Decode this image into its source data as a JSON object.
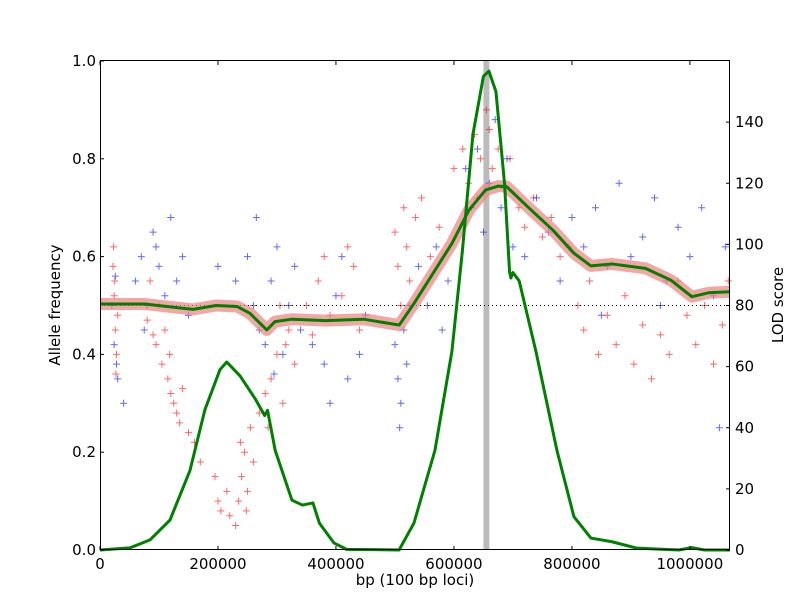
{
  "chart_data": {
    "type": "scatter",
    "title": "",
    "xlabel": "bp (100 bp loci)",
    "ylabel": "Allele frequency",
    "y2label": "LOD score",
    "xlim": [
      0,
      1068000
    ],
    "ylim": [
      0,
      1.0
    ],
    "y2lim": [
      0,
      160
    ],
    "grid": false,
    "x_ticks": [
      0,
      200000,
      400000,
      600000,
      800000,
      1000000
    ],
    "x_tick_labels": [
      "0",
      "200000",
      "400000",
      "600000",
      "800000",
      "1000000"
    ],
    "y_ticks": [
      0,
      0.2,
      0.4,
      0.6,
      0.8,
      1.0
    ],
    "y_tick_labels": [
      "0.0",
      "0.2",
      "0.4",
      "0.6",
      "0.8",
      "1.0"
    ],
    "y2_ticks": [
      0,
      20,
      40,
      60,
      80,
      100,
      120,
      140
    ],
    "y2_tick_labels": [
      "0",
      "20",
      "40",
      "60",
      "80",
      "100",
      "120",
      "140"
    ],
    "reference_line": {
      "y": 0.5,
      "style": "dotted",
      "color": "#000000"
    },
    "highlight_band": {
      "x": [
        650000,
        660000
      ],
      "color": "#bbbbbb"
    },
    "colors": {
      "red": "#ff0000",
      "blue": "#0000ff",
      "lod": "#008000",
      "band": "#f08080"
    },
    "series": [
      {
        "marker": "+",
        "color": "#ff0000",
        "points": [
          [
            22000,
            0.58
          ],
          [
            24000,
            0.52
          ],
          [
            26000,
            0.45
          ],
          [
            28000,
            0.4
          ],
          [
            25000,
            0.55
          ],
          [
            30000,
            0.48
          ],
          [
            27000,
            0.36
          ],
          [
            23000,
            0.62
          ],
          [
            80000,
            0.47
          ],
          [
            90000,
            0.44
          ],
          [
            95000,
            0.42
          ],
          [
            100000,
            0.5
          ],
          [
            105000,
            0.38
          ],
          [
            110000,
            0.45
          ],
          [
            115000,
            0.35
          ],
          [
            120000,
            0.32
          ],
          [
            125000,
            0.3
          ],
          [
            130000,
            0.28
          ],
          [
            135000,
            0.26
          ],
          [
            140000,
            0.33
          ],
          [
            150000,
            0.24
          ],
          [
            160000,
            0.22
          ],
          [
            170000,
            0.18
          ],
          [
            85000,
            0.55
          ],
          [
            118000,
            0.4
          ],
          [
            195000,
            0.15
          ],
          [
            200000,
            0.1
          ],
          [
            205000,
            0.08
          ],
          [
            215000,
            0.12
          ],
          [
            220000,
            0.07
          ],
          [
            230000,
            0.05
          ],
          [
            235000,
            0.1
          ],
          [
            240000,
            0.15
          ],
          [
            245000,
            0.2
          ],
          [
            250000,
            0.12
          ],
          [
            255000,
            0.25
          ],
          [
            260000,
            0.18
          ],
          [
            248000,
            0.08
          ],
          [
            238000,
            0.22
          ],
          [
            270000,
            0.28
          ],
          [
            280000,
            0.32
          ],
          [
            290000,
            0.35
          ],
          [
            300000,
            0.4
          ],
          [
            310000,
            0.3
          ],
          [
            320000,
            0.45
          ],
          [
            330000,
            0.38
          ],
          [
            285000,
            0.25
          ],
          [
            305000,
            0.5
          ],
          [
            315000,
            0.42
          ],
          [
            350000,
            0.5
          ],
          [
            370000,
            0.55
          ],
          [
            390000,
            0.48
          ],
          [
            410000,
            0.52
          ],
          [
            430000,
            0.58
          ],
          [
            440000,
            0.45
          ],
          [
            380000,
            0.6
          ],
          [
            420000,
            0.62
          ],
          [
            360000,
            0.44
          ],
          [
            500000,
            0.65
          ],
          [
            505000,
            0.58
          ],
          [
            510000,
            0.5
          ],
          [
            515000,
            0.7
          ],
          [
            520000,
            0.62
          ],
          [
            525000,
            0.55
          ],
          [
            535000,
            0.68
          ],
          [
            545000,
            0.72
          ],
          [
            560000,
            0.6
          ],
          [
            575000,
            0.66
          ],
          [
            600000,
            0.78
          ],
          [
            615000,
            0.82
          ],
          [
            625000,
            0.75
          ],
          [
            635000,
            0.85
          ],
          [
            645000,
            0.8
          ],
          [
            655000,
            0.9
          ],
          [
            660000,
            0.86
          ],
          [
            665000,
            0.78
          ],
          [
            675000,
            0.82
          ],
          [
            685000,
            0.74
          ],
          [
            695000,
            0.8
          ],
          [
            640000,
            0.72
          ],
          [
            710000,
            0.7
          ],
          [
            720000,
            0.66
          ],
          [
            735000,
            0.72
          ],
          [
            750000,
            0.64
          ],
          [
            765000,
            0.68
          ],
          [
            780000,
            0.6
          ],
          [
            795000,
            0.62
          ],
          [
            810000,
            0.5
          ],
          [
            820000,
            0.45
          ],
          [
            830000,
            0.55
          ],
          [
            845000,
            0.4
          ],
          [
            860000,
            0.48
          ],
          [
            875000,
            0.42
          ],
          [
            890000,
            0.52
          ],
          [
            905000,
            0.38
          ],
          [
            920000,
            0.46
          ],
          [
            935000,
            0.35
          ],
          [
            950000,
            0.44
          ],
          [
            965000,
            0.4
          ],
          [
            980000,
            0.55
          ],
          [
            995000,
            0.48
          ],
          [
            1010000,
            0.42
          ],
          [
            1025000,
            0.5
          ],
          [
            1040000,
            0.38
          ],
          [
            1055000,
            0.46
          ],
          [
            1065000,
            0.55
          ]
        ]
      },
      {
        "marker": "+",
        "color": "#0000ff",
        "points": [
          [
            20000,
            0.5
          ],
          [
            24000,
            0.42
          ],
          [
            28000,
            0.38
          ],
          [
            26000,
            0.56
          ],
          [
            30000,
            0.35
          ],
          [
            40000,
            0.3
          ],
          [
            60000,
            0.55
          ],
          [
            70000,
            0.6
          ],
          [
            80000,
            0.5
          ],
          [
            90000,
            0.65
          ],
          [
            100000,
            0.58
          ],
          [
            110000,
            0.52
          ],
          [
            120000,
            0.68
          ],
          [
            130000,
            0.55
          ],
          [
            140000,
            0.6
          ],
          [
            150000,
            0.48
          ],
          [
            75000,
            0.45
          ],
          [
            95000,
            0.62
          ],
          [
            200000,
            0.58
          ],
          [
            230000,
            0.55
          ],
          [
            250000,
            0.6
          ],
          [
            260000,
            0.5
          ],
          [
            270000,
            0.45
          ],
          [
            280000,
            0.42
          ],
          [
            290000,
            0.55
          ],
          [
            300000,
            0.62
          ],
          [
            310000,
            0.4
          ],
          [
            320000,
            0.5
          ],
          [
            330000,
            0.58
          ],
          [
            340000,
            0.45
          ],
          [
            265000,
            0.68
          ],
          [
            295000,
            0.36
          ],
          [
            360000,
            0.42
          ],
          [
            380000,
            0.38
          ],
          [
            400000,
            0.52
          ],
          [
            420000,
            0.35
          ],
          [
            440000,
            0.4
          ],
          [
            450000,
            0.48
          ],
          [
            390000,
            0.3
          ],
          [
            410000,
            0.6
          ],
          [
            500000,
            0.42
          ],
          [
            505000,
            0.35
          ],
          [
            510000,
            0.3
          ],
          [
            515000,
            0.45
          ],
          [
            520000,
            0.38
          ],
          [
            508000,
            0.25
          ],
          [
            525000,
            0.5
          ],
          [
            540000,
            0.58
          ],
          [
            555000,
            0.5
          ],
          [
            570000,
            0.62
          ],
          [
            590000,
            0.55
          ],
          [
            580000,
            0.45
          ],
          [
            620000,
            0.78
          ],
          [
            630000,
            0.7
          ],
          [
            640000,
            0.82
          ],
          [
            650000,
            0.65
          ],
          [
            660000,
            0.75
          ],
          [
            670000,
            0.88
          ],
          [
            680000,
            0.7
          ],
          [
            690000,
            0.8
          ],
          [
            700000,
            0.62
          ],
          [
            720000,
            0.6
          ],
          [
            740000,
            0.72
          ],
          [
            760000,
            0.65
          ],
          [
            780000,
            0.55
          ],
          [
            800000,
            0.68
          ],
          [
            820000,
            0.62
          ],
          [
            840000,
            0.7
          ],
          [
            860000,
            0.58
          ],
          [
            880000,
            0.75
          ],
          [
            900000,
            0.6
          ],
          [
            920000,
            0.64
          ],
          [
            940000,
            0.72
          ],
          [
            960000,
            0.55
          ],
          [
            980000,
            0.66
          ],
          [
            1000000,
            0.6
          ],
          [
            1020000,
            0.7
          ],
          [
            1040000,
            0.52
          ],
          [
            1060000,
            0.62
          ],
          [
            1050000,
            0.25
          ],
          [
            850000,
            0.48
          ],
          [
            950000,
            0.5
          ]
        ]
      },
      {
        "type": "line",
        "axis": "left",
        "color": "#008000",
        "band_color": "#f08080",
        "points": [
          [
            0,
            0.503
          ],
          [
            75800,
            0.503
          ],
          [
            157600,
            0.492
          ],
          [
            196600,
            0.5
          ],
          [
            232200,
            0.498
          ],
          [
            254200,
            0.484
          ],
          [
            282700,
            0.45
          ],
          [
            296600,
            0.467
          ],
          [
            325400,
            0.472
          ],
          [
            382500,
            0.469
          ],
          [
            446800,
            0.472
          ],
          [
            507300,
            0.46
          ],
          [
            532200,
            0.504
          ],
          [
            561000,
            0.559
          ],
          [
            596600,
            0.627
          ],
          [
            625400,
            0.695
          ],
          [
            653500,
            0.736
          ],
          [
            674600,
            0.744
          ],
          [
            689300,
            0.743
          ],
          [
            724900,
            0.702
          ],
          [
            767800,
            0.654
          ],
          [
            803400,
            0.607
          ],
          [
            832200,
            0.581
          ],
          [
            867800,
            0.585
          ],
          [
            924700,
            0.576
          ],
          [
            967500,
            0.552
          ],
          [
            1003400,
            0.518
          ],
          [
            1031700,
            0.526
          ],
          [
            1067300,
            0.528
          ]
        ]
      },
      {
        "type": "line",
        "axis": "right",
        "color": "#008000",
        "points": [
          [
            0,
            0
          ],
          [
            50800,
            0.7
          ],
          [
            84700,
            3.3
          ],
          [
            118600,
            9.8
          ],
          [
            152500,
            26
          ],
          [
            178000,
            46
          ],
          [
            203400,
            59
          ],
          [
            214900,
            61.5
          ],
          [
            237300,
            57
          ],
          [
            262700,
            49.6
          ],
          [
            279100,
            44
          ],
          [
            284000,
            45.7
          ],
          [
            297000,
            32.6
          ],
          [
            325400,
            16.3
          ],
          [
            343200,
            14.7
          ],
          [
            361000,
            15.4
          ],
          [
            371900,
            8.8
          ],
          [
            396600,
            2.3
          ],
          [
            418000,
            0.2
          ],
          [
            507000,
            0
          ],
          [
            532200,
            8.8
          ],
          [
            567800,
            32.6
          ],
          [
            596600,
            65
          ],
          [
            614400,
            98
          ],
          [
            632200,
            136
          ],
          [
            650000,
            155
          ],
          [
            659300,
            156.7
          ],
          [
            671200,
            150
          ],
          [
            685800,
            119.8
          ],
          [
            694300,
            91
          ],
          [
            696600,
            89
          ],
          [
            700000,
            90.8
          ],
          [
            710700,
            88
          ],
          [
            739000,
            65
          ],
          [
            774600,
            32.6
          ],
          [
            803400,
            10.9
          ],
          [
            832200,
            3.9
          ],
          [
            867800,
            2.7
          ],
          [
            910200,
            0.6
          ],
          [
            981400,
            0
          ],
          [
            1003400,
            0.8
          ],
          [
            1024600,
            0
          ],
          [
            1068000,
            0
          ]
        ]
      }
    ]
  }
}
